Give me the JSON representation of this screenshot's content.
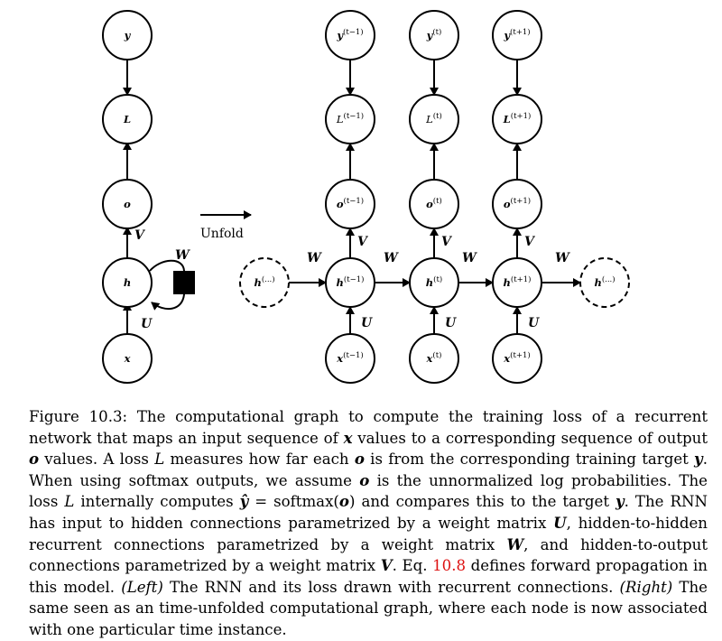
{
  "diagram": {
    "left": {
      "nodes": {
        "y": "y",
        "L": "L",
        "o": "o",
        "h": "h",
        "x": "x"
      },
      "edges": {
        "V": "V",
        "W": "W",
        "U": "U"
      }
    },
    "unfold_label": "Unfold",
    "right": {
      "columns": [
        {
          "sup": "(t−1)",
          "y": "y",
          "L": "L",
          "o": "o",
          "h": "h",
          "x": "x",
          "bold_L": false
        },
        {
          "sup": "(t)",
          "y": "y",
          "L": "L",
          "o": "o",
          "h": "h",
          "x": "x",
          "bold_L": false
        },
        {
          "sup": "(t+1)",
          "y": "y",
          "L": "L",
          "o": "o",
          "h": "h",
          "x": "x",
          "bold_L": true
        }
      ],
      "dashed_nodes": {
        "h": "h",
        "sup": "(...)"
      },
      "edge_labels": {
        "V": "V",
        "W": "W",
        "U": "U"
      }
    }
  },
  "caption": {
    "figure_label": "Figure 10.3:",
    "p1": " The computational graph to compute the training loss of a recurrent network that maps an input sequence of ",
    "x": "x",
    "p2": " values to a corresponding sequence of output ",
    "o1": "o",
    "p3": " values. A loss ",
    "L1": "L",
    "p4": " measures how far each ",
    "o2": "o",
    "p5": " is from the corresponding training target ",
    "y1": "y",
    "p6": ". When using softmax outputs, we assume ",
    "o3": "o",
    "p7": " is the unnormalized log probabilities. The loss ",
    "L2": "L",
    "p8": " internally computes ",
    "yhat": "ŷ",
    "p9": " = softmax(",
    "o4": "o",
    "p10": ") and compares this to the target ",
    "y2": "y",
    "p11": ". The RNN has input to hidden connections parametrized by a weight matrix ",
    "U": "U",
    "p12": ", hidden-to-hidden recurrent connections parametrized by a weight matrix ",
    "W": "W",
    "p13": ", and hidden-to-output connections parametrized by a weight matrix ",
    "V": "V",
    "p14": ". Eq. ",
    "eq_ref": "10.8",
    "p15": " defines forward propagation in this model. ",
    "left_tag": "(Left)",
    "p16": " The RNN and its loss drawn with recurrent connections. ",
    "right_tag": "(Right)",
    "p17": " The same seen as an time-unfolded computational graph, where each node is now associated with one particular time instance."
  }
}
